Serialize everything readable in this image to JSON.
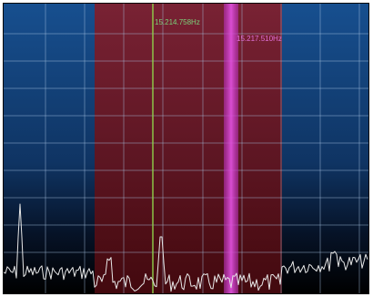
{
  "spectrum": {
    "markers": [
      {
        "label": "15.214.758Hz",
        "color": "#7ad27a"
      },
      {
        "label": "15.217.510Hz",
        "color": "#e070d8"
      }
    ],
    "colors": {
      "background_top": "#1c5fa6",
      "background_bottom": "#000000",
      "passband": "#7a1620",
      "grid": "#9fb8d6",
      "trace": "#e6e6e6",
      "center_marker": "#7cc24a",
      "tune_band": "#c23ab8"
    },
    "level_readout": {}
  }
}
